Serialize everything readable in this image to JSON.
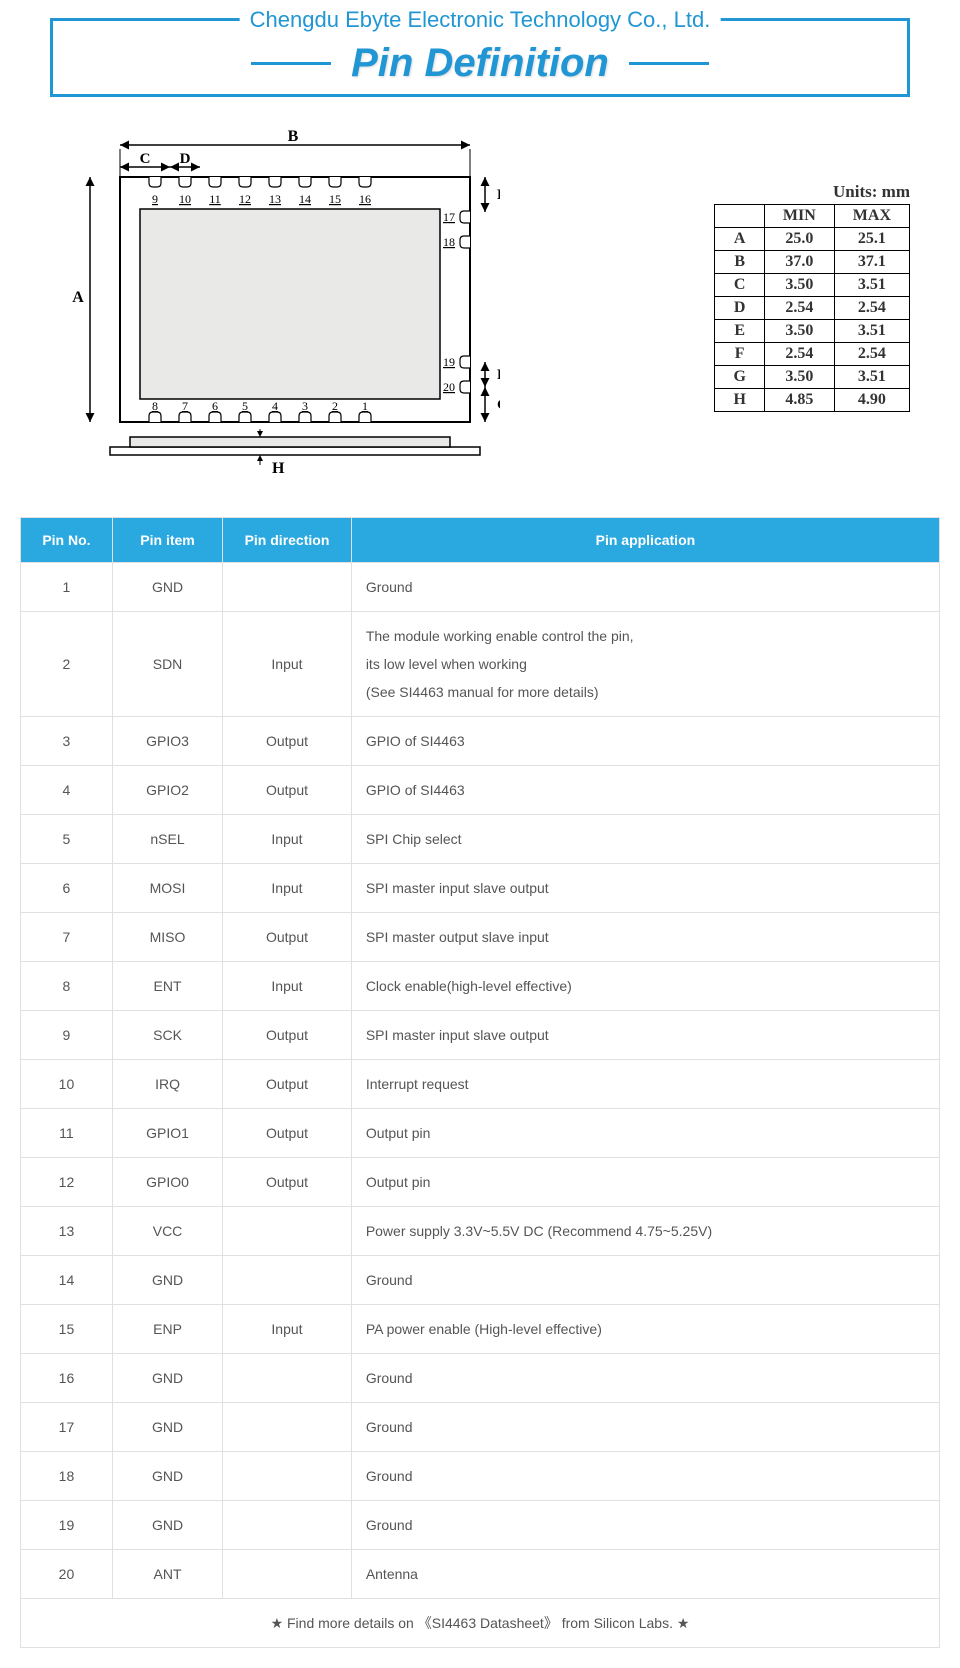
{
  "header": {
    "company": "Chengdu Ebyte Electronic Technology Co., Ltd.",
    "title": "Pin Definition"
  },
  "dimensions": {
    "units_label": "Units: mm",
    "headers": [
      "",
      "MIN",
      "MAX"
    ],
    "rows": [
      {
        "label": "A",
        "min": "25.0",
        "max": "25.1"
      },
      {
        "label": "B",
        "min": "37.0",
        "max": "37.1"
      },
      {
        "label": "C",
        "min": "3.50",
        "max": "3.51"
      },
      {
        "label": "D",
        "min": "2.54",
        "max": "2.54"
      },
      {
        "label": "E",
        "min": "3.50",
        "max": "3.51"
      },
      {
        "label": "F",
        "min": "2.54",
        "max": "2.54"
      },
      {
        "label": "G",
        "min": "3.50",
        "max": "3.51"
      },
      {
        "label": "H",
        "min": "4.85",
        "max": "4.90"
      }
    ]
  },
  "diagram": {
    "labels": {
      "A": "A",
      "B": "B",
      "C": "C",
      "D": "D",
      "E": "E",
      "F": "F",
      "G": "G",
      "H": "H"
    },
    "top_pins": [
      "9",
      "10",
      "11",
      "12",
      "13",
      "14",
      "15",
      "16"
    ],
    "bottom_pins": [
      "8",
      "7",
      "6",
      "5",
      "4",
      "3",
      "2",
      "1"
    ],
    "right_pins_top": [
      "17",
      "18"
    ],
    "right_pins_bottom": [
      "19",
      "20"
    ],
    "body_outline_color": "#000000",
    "shield_fill": "#e9e9e8",
    "background": "#ffffff"
  },
  "pin_table": {
    "headers": [
      "Pin No.",
      "Pin item",
      "Pin direction",
      "Pin application"
    ],
    "rows": [
      {
        "no": "1",
        "item": "GND",
        "dir": "",
        "app": "Ground"
      },
      {
        "no": "2",
        "item": "SDN",
        "dir": "Input",
        "app": "The module working enable control the pin,\nits low level when working\n(See SI4463 manual for more details)"
      },
      {
        "no": "3",
        "item": "GPIO3",
        "dir": "Output",
        "app": "GPIO of SI4463"
      },
      {
        "no": "4",
        "item": "GPIO2",
        "dir": "Output",
        "app": "GPIO of SI4463"
      },
      {
        "no": "5",
        "item": "nSEL",
        "dir": "Input",
        "app": "SPI Chip select"
      },
      {
        "no": "6",
        "item": "MOSI",
        "dir": "Input",
        "app": "SPI master input slave output"
      },
      {
        "no": "7",
        "item": "MISO",
        "dir": "Output",
        "app": "SPI master output slave input"
      },
      {
        "no": "8",
        "item": "ENT",
        "dir": "Input",
        "app": "Clock enable(high-level effective)"
      },
      {
        "no": "9",
        "item": "SCK",
        "dir": "Output",
        "app": "SPI master input slave output"
      },
      {
        "no": "10",
        "item": "IRQ",
        "dir": "Output",
        "app": "Interrupt request"
      },
      {
        "no": "11",
        "item": "GPIO1",
        "dir": "Output",
        "app": "Output pin"
      },
      {
        "no": "12",
        "item": "GPIO0",
        "dir": "Output",
        "app": "Output pin"
      },
      {
        "no": "13",
        "item": "VCC",
        "dir": "",
        "app": "Power supply 3.3V~5.5V DC (Recommend 4.75~5.25V)"
      },
      {
        "no": "14",
        "item": "GND",
        "dir": "",
        "app": "Ground"
      },
      {
        "no": "15",
        "item": "ENP",
        "dir": "Input",
        "app": "PA power enable (High-level effective)"
      },
      {
        "no": "16",
        "item": "GND",
        "dir": "",
        "app": "Ground"
      },
      {
        "no": "17",
        "item": "GND",
        "dir": "",
        "app": "Ground"
      },
      {
        "no": "18",
        "item": "GND",
        "dir": "",
        "app": "Ground"
      },
      {
        "no": "19",
        "item": "GND",
        "dir": "",
        "app": "Ground"
      },
      {
        "no": "20",
        "item": "ANT",
        "dir": "",
        "app": "Antenna"
      }
    ],
    "footer": "★    Find more details on 《SI4463 Datasheet》  from Silicon Labs. ★"
  },
  "colors": {
    "brand_blue": "#2196d4",
    "table_header_bg": "#29a9e0",
    "table_border": "#e0e0e0",
    "text": "#555555"
  }
}
